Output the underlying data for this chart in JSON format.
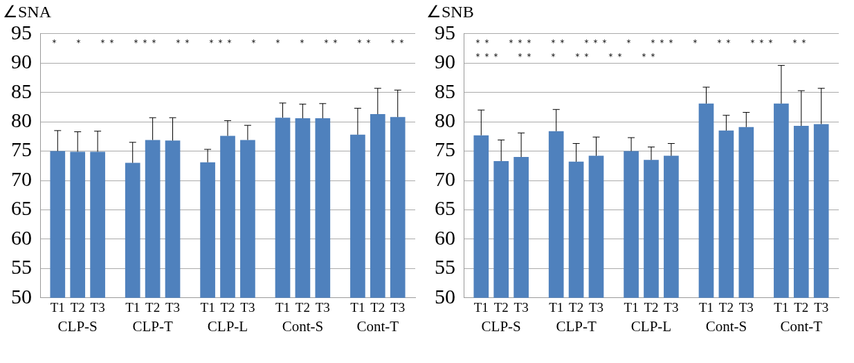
{
  "chart_data": [
    {
      "type": "bar",
      "title": "∠SNA",
      "categories": [
        "CLP-S",
        "CLP-T",
        "CLP-L",
        "Cont-S",
        "Cont-T"
      ],
      "series": [
        {
          "name": "T1",
          "color": "#4f81bd",
          "values": [
            75.0,
            73.0,
            73.1,
            80.7,
            77.8
          ],
          "errors": [
            [
              75.0,
              78.5
            ],
            [
              73.0,
              76.5
            ],
            [
              73.1,
              75.3
            ],
            [
              80.7,
              83.2
            ],
            [
              77.8,
              82.3
            ]
          ]
        },
        {
          "name": "T2",
          "color": "#4f81bd",
          "values": [
            74.9,
            76.9,
            77.6,
            80.6,
            81.3
          ],
          "errors": [
            [
              74.9,
              78.3
            ],
            [
              76.9,
              80.7
            ],
            [
              77.6,
              80.2
            ],
            [
              80.6,
              83.0
            ],
            [
              81.3,
              85.7
            ]
          ]
        },
        {
          "name": "T3",
          "color": "#4f81bd",
          "values": [
            74.9,
            76.8,
            76.9,
            80.6,
            80.8
          ],
          "errors": [
            [
              74.9,
              78.4
            ],
            [
              76.8,
              80.7
            ],
            [
              76.9,
              79.4
            ],
            [
              80.6,
              83.1
            ],
            [
              80.8,
              85.4
            ]
          ]
        }
      ],
      "ylim": [
        50,
        95
      ],
      "yticks": [
        50,
        55,
        60,
        65,
        70,
        75,
        80,
        85,
        90,
        95
      ],
      "grid": "y",
      "legend": false,
      "annotations": [
        "＊",
        "＊",
        "＊＊",
        "＊＊＊",
        "＊＊",
        "＊＊＊",
        "＊",
        "＊",
        "＊",
        "＊＊",
        "＊＊",
        "＊＊"
      ]
    },
    {
      "type": "bar",
      "title": "∠SNB",
      "categories": [
        "CLP-S",
        "CLP-T",
        "CLP-L",
        "Cont-S",
        "Cont-T"
      ],
      "series": [
        {
          "name": "T1",
          "color": "#4f81bd",
          "values": [
            77.7,
            78.4,
            75.0,
            83.1,
            83.1
          ],
          "errors": [
            [
              77.7,
              82.0
            ],
            [
              78.4,
              82.1
            ],
            [
              75.0,
              77.3
            ],
            [
              83.1,
              85.9
            ],
            [
              83.1,
              89.6
            ]
          ]
        },
        {
          "name": "T2",
          "color": "#4f81bd",
          "values": [
            73.3,
            73.2,
            73.5,
            78.5,
            79.3
          ],
          "errors": [
            [
              73.3,
              76.9
            ],
            [
              73.2,
              76.3
            ],
            [
              73.5,
              75.7
            ],
            [
              78.5,
              81.1
            ],
            [
              79.3,
              85.3
            ]
          ]
        },
        {
          "name": "T3",
          "color": "#4f81bd",
          "values": [
            74.0,
            74.2,
            74.2,
            79.1,
            79.6
          ],
          "errors": [
            [
              74.0,
              78.1
            ],
            [
              74.2,
              77.4
            ],
            [
              74.2,
              76.3
            ],
            [
              79.1,
              81.6
            ],
            [
              79.6,
              85.7
            ]
          ]
        }
      ],
      "ylim": [
        50,
        95
      ],
      "yticks": [
        50,
        55,
        60,
        65,
        70,
        75,
        80,
        85,
        90,
        95
      ],
      "grid": "y",
      "legend": false,
      "annotations": [
        "＊＊",
        "＊＊＊",
        "＊＊",
        "＊＊＊",
        "＊",
        "＊＊＊",
        "＊",
        "＊＊",
        "＊＊＊",
        "＊＊",
        "＊＊＊",
        "＊＊",
        "＊",
        "＊＊",
        "＊＊",
        "＊＊"
      ]
    }
  ]
}
